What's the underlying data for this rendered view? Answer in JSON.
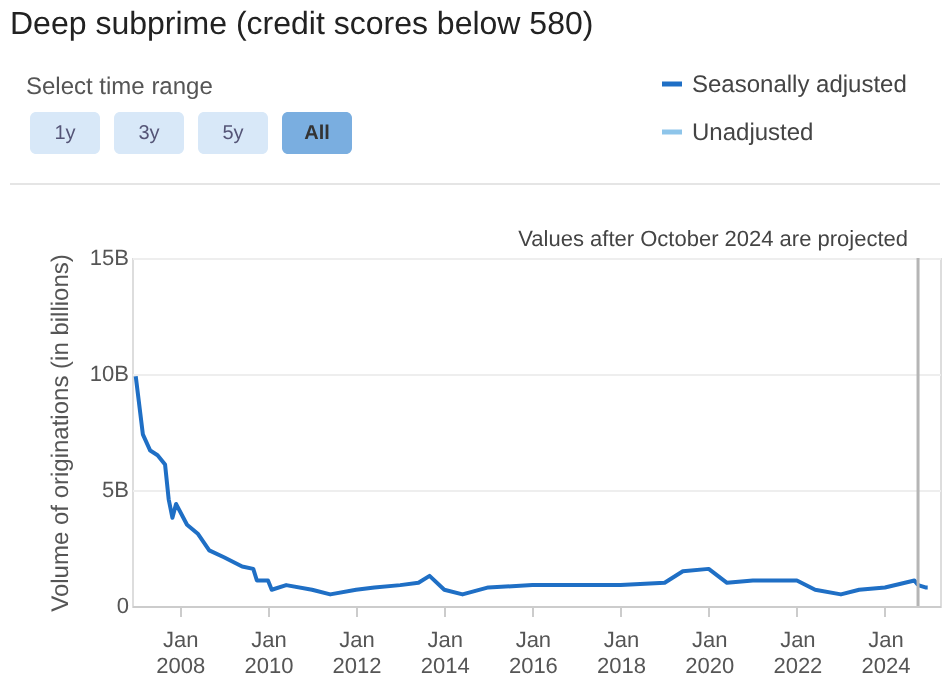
{
  "chart_data": {
    "type": "line",
    "title": "Deep subprime (credit scores below 580)",
    "ylabel": "Volume of originations (in billions)",
    "annotations": [
      "Select time range",
      "1y",
      "3y",
      "5y",
      "All"
    ],
    "x": [
      "2007-01",
      "2007-03",
      "2007-05",
      "2007-07",
      "2007-09",
      "2007-10",
      "2007-11",
      "2007-12",
      "2008-03",
      "2008-06",
      "2008-09",
      "2009-01",
      "2009-06",
      "2009-09",
      "2009-10",
      "2010-01",
      "2010-02",
      "2010-06",
      "2011-01",
      "2011-06",
      "2012-01",
      "2012-06",
      "2013-01",
      "2013-06",
      "2013-09",
      "2014-01",
      "2014-06",
      "2015-01",
      "2016-01",
      "2017-01",
      "2018-01",
      "2019-01",
      "2019-06",
      "2020-01",
      "2020-06",
      "2021-01",
      "2022-01",
      "2022-06",
      "2023-01",
      "2023-06",
      "2024-01",
      "2024-09",
      "2024-10"
    ],
    "series": [
      {
        "name": "Seasonally adjusted",
        "color": "#1f6fc5",
        "values": [
          9.9,
          7.4,
          6.7,
          6.5,
          6.1,
          4.6,
          3.8,
          4.4,
          3.5,
          3.1,
          2.4,
          2.1,
          1.7,
          1.6,
          1.1,
          1.1,
          0.7,
          0.9,
          0.7,
          0.5,
          0.7,
          0.8,
          0.9,
          1.0,
          1.3,
          0.7,
          0.5,
          0.8,
          0.9,
          0.9,
          0.9,
          1.0,
          1.5,
          1.6,
          1.0,
          1.1,
          1.1,
          0.7,
          0.5,
          0.7,
          0.8,
          1.1,
          0.9
        ]
      },
      {
        "name": "Unadjusted",
        "color": "#8ec5ea",
        "values": [
          null,
          null,
          null,
          null,
          null,
          null,
          null,
          null,
          null,
          null,
          null,
          null,
          null,
          null,
          null,
          null,
          null,
          null,
          null,
          null,
          null,
          null,
          null,
          null,
          null,
          null,
          null,
          null,
          null,
          null,
          null,
          null,
          null,
          null,
          null,
          null,
          null,
          null,
          null,
          null,
          null,
          null,
          null
        ]
      },
      {
        "color": "#1f6fc5",
        "line_style": "dashed",
        "x": [
          "2024-10",
          "2024-12",
          "2025-02"
        ],
        "values": [
          0.9,
          0.8,
          0.8
        ]
      }
    ],
    "xlim": [
      "2006-12",
      "2025-04"
    ],
    "xticks": [
      {
        "value": "2008-01",
        "label": "Jan 2008"
      },
      {
        "value": "2010-01",
        "label": "Jan 2010"
      },
      {
        "value": "2012-01",
        "label": "Jan 2012"
      },
      {
        "value": "2014-01",
        "label": "Jan 2014"
      },
      {
        "value": "2016-01",
        "label": "Jan 2016"
      },
      {
        "value": "2018-01",
        "label": "Jan 2018"
      },
      {
        "value": "2020-01",
        "label": "Jan 2020"
      },
      {
        "value": "2022-01",
        "label": "Jan 2022"
      },
      {
        "value": "2024-01",
        "label": "Jan 2024"
      }
    ],
    "ylim": [
      0,
      15
    ],
    "yticks": [
      0,
      {
        "value": 5,
        "label": "5B"
      },
      {
        "value": 10,
        "label": "10B"
      },
      {
        "value": 15,
        "label": "15B"
      }
    ],
    "ref_lines": [
      {
        "axis": "x",
        "value": "2024-10",
        "label": "Values after October 2024 are projected",
        "color": "#b5b5b5"
      }
    ],
    "grid": "y",
    "legend": "top right",
    "line_style": "solid",
    "marker": "none"
  }
}
